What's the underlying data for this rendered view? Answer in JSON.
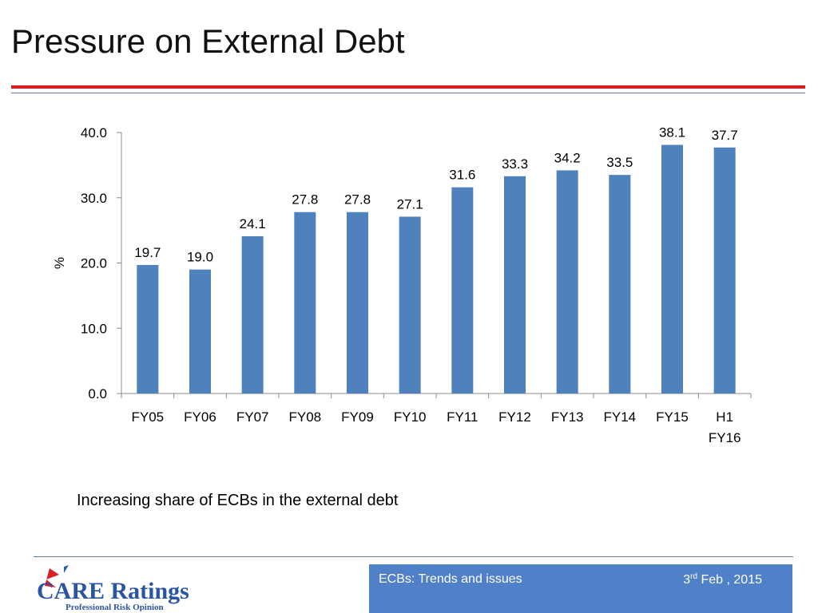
{
  "slide": {
    "title": "Pressure on External Debt",
    "caption": "Increasing share of ECBs in the external debt"
  },
  "footer": {
    "left_text": "ECBs: Trends and issues",
    "date_day": "3",
    "date_suffix": "rd",
    "date_rest": " Feb , 2015",
    "logo_text": "CARE Ratings",
    "logo_tagline": "Professional Risk Opinion"
  },
  "colors": {
    "bar": "#4f81bd",
    "title_rule": "#e8141b",
    "accent_blue": "#5081c8"
  },
  "chart_data": {
    "type": "bar",
    "categories": [
      "FY05",
      "FY06",
      "FY07",
      "FY08",
      "FY09",
      "FY10",
      "FY11",
      "FY12",
      "FY13",
      "FY14",
      "FY15",
      "H1 FY16"
    ],
    "values": [
      19.7,
      19.0,
      24.1,
      27.8,
      27.8,
      27.1,
      31.6,
      33.3,
      34.2,
      33.5,
      38.1,
      37.7
    ],
    "value_labels": [
      "19.7",
      "19.0",
      "24.1",
      "27.8",
      "27.8",
      "27.1",
      "31.6",
      "33.3",
      "34.2",
      "33.5",
      "38.1",
      "37.7"
    ],
    "ylabel": "%",
    "ylim": [
      0,
      40
    ],
    "yticks": [
      "0.0",
      "10.0",
      "20.0",
      "30.0",
      "40.0"
    ],
    "grid": false,
    "legend": "none"
  }
}
